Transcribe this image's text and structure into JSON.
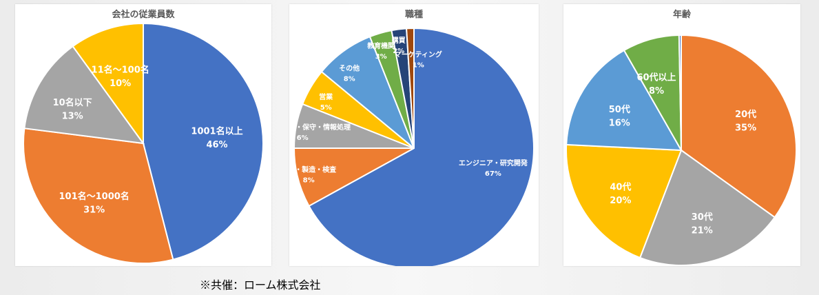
{
  "chart_data": [
    {
      "type": "pie",
      "title": "会社の従業員数",
      "slices": [
        {
          "label": "1001名以上",
          "value": 46,
          "pct_label": "46%",
          "color": "#4472C4"
        },
        {
          "label": "101名〜1000名",
          "value": 31,
          "pct_label": "31%",
          "color": "#ED7D31"
        },
        {
          "label": "10名以下",
          "value": 13,
          "pct_label": "13%",
          "color": "#A5A5A5"
        },
        {
          "label": "11名〜100名",
          "value": 10,
          "pct_label": "10%",
          "color": "#FFC000"
        }
      ]
    },
    {
      "type": "pie",
      "title": "職種",
      "slices": [
        {
          "label": "エンジニア・研究開発",
          "value": 67,
          "pct_label": "67%",
          "color": "#4472C4"
        },
        {
          "label": "生産・製造・検査",
          "value": 8,
          "pct_label": "8%",
          "color": "#ED7D31"
        },
        {
          "label": "システム設計・保守・情報処理",
          "value": 6,
          "pct_label": "6%",
          "color": "#A5A5A5"
        },
        {
          "label": "営業",
          "value": 5,
          "pct_label": "5%",
          "color": "#FFC000"
        },
        {
          "label": "その他",
          "value": 8,
          "pct_label": "8%",
          "color": "#5B9BD5"
        },
        {
          "label": "教育機関",
          "value": 3,
          "pct_label": "3%",
          "color": "#70AD47"
        },
        {
          "label": "購買",
          "value": 2,
          "pct_label": "2%",
          "color": "#264478"
        },
        {
          "label": "マーケティング",
          "value": 1,
          "pct_label": "1%",
          "color": "#9E480E"
        }
      ]
    },
    {
      "type": "pie",
      "title": "年齢",
      "slices": [
        {
          "label": "20代",
          "value": 35,
          "pct_label": "35%",
          "color": "#ED7D31"
        },
        {
          "label": "30代",
          "value": 21,
          "pct_label": "21%",
          "color": "#A5A5A5"
        },
        {
          "label": "40代",
          "value": 20,
          "pct_label": "20%",
          "color": "#FFC000"
        },
        {
          "label": "50代",
          "value": 16,
          "pct_label": "16%",
          "color": "#5B9BD5"
        },
        {
          "label": "60代以上",
          "value": 8,
          "pct_label": "8%",
          "color": "#70AD47"
        },
        {
          "label": "",
          "value": 0.3,
          "pct_label": "",
          "color": "#4472C4"
        }
      ]
    }
  ],
  "footnote": "※共催：ローム株式会社"
}
